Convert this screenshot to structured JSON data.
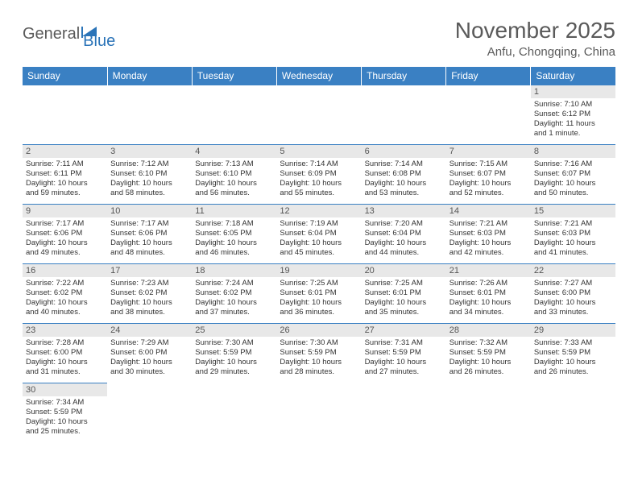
{
  "brand": {
    "part1": "General",
    "part2": "Blue"
  },
  "title": "November 2025",
  "location": "Anfu, Chongqing, China",
  "colors": {
    "header_bg": "#3a80c3",
    "header_text": "#ffffff",
    "daynum_bg": "#e8e8e8",
    "cell_border": "#3a80c3",
    "body_text": "#333333",
    "title_text": "#5a5a5a",
    "brand_accent": "#2b74b8"
  },
  "weekdays": [
    "Sunday",
    "Monday",
    "Tuesday",
    "Wednesday",
    "Thursday",
    "Friday",
    "Saturday"
  ],
  "weeks": [
    [
      null,
      null,
      null,
      null,
      null,
      null,
      {
        "d": "1",
        "sr": "Sunrise: 7:10 AM",
        "ss": "Sunset: 6:12 PM",
        "dl1": "Daylight: 11 hours",
        "dl2": "and 1 minute."
      }
    ],
    [
      {
        "d": "2",
        "sr": "Sunrise: 7:11 AM",
        "ss": "Sunset: 6:11 PM",
        "dl1": "Daylight: 10 hours",
        "dl2": "and 59 minutes."
      },
      {
        "d": "3",
        "sr": "Sunrise: 7:12 AM",
        "ss": "Sunset: 6:10 PM",
        "dl1": "Daylight: 10 hours",
        "dl2": "and 58 minutes."
      },
      {
        "d": "4",
        "sr": "Sunrise: 7:13 AM",
        "ss": "Sunset: 6:10 PM",
        "dl1": "Daylight: 10 hours",
        "dl2": "and 56 minutes."
      },
      {
        "d": "5",
        "sr": "Sunrise: 7:14 AM",
        "ss": "Sunset: 6:09 PM",
        "dl1": "Daylight: 10 hours",
        "dl2": "and 55 minutes."
      },
      {
        "d": "6",
        "sr": "Sunrise: 7:14 AM",
        "ss": "Sunset: 6:08 PM",
        "dl1": "Daylight: 10 hours",
        "dl2": "and 53 minutes."
      },
      {
        "d": "7",
        "sr": "Sunrise: 7:15 AM",
        "ss": "Sunset: 6:07 PM",
        "dl1": "Daylight: 10 hours",
        "dl2": "and 52 minutes."
      },
      {
        "d": "8",
        "sr": "Sunrise: 7:16 AM",
        "ss": "Sunset: 6:07 PM",
        "dl1": "Daylight: 10 hours",
        "dl2": "and 50 minutes."
      }
    ],
    [
      {
        "d": "9",
        "sr": "Sunrise: 7:17 AM",
        "ss": "Sunset: 6:06 PM",
        "dl1": "Daylight: 10 hours",
        "dl2": "and 49 minutes."
      },
      {
        "d": "10",
        "sr": "Sunrise: 7:17 AM",
        "ss": "Sunset: 6:06 PM",
        "dl1": "Daylight: 10 hours",
        "dl2": "and 48 minutes."
      },
      {
        "d": "11",
        "sr": "Sunrise: 7:18 AM",
        "ss": "Sunset: 6:05 PM",
        "dl1": "Daylight: 10 hours",
        "dl2": "and 46 minutes."
      },
      {
        "d": "12",
        "sr": "Sunrise: 7:19 AM",
        "ss": "Sunset: 6:04 PM",
        "dl1": "Daylight: 10 hours",
        "dl2": "and 45 minutes."
      },
      {
        "d": "13",
        "sr": "Sunrise: 7:20 AM",
        "ss": "Sunset: 6:04 PM",
        "dl1": "Daylight: 10 hours",
        "dl2": "and 44 minutes."
      },
      {
        "d": "14",
        "sr": "Sunrise: 7:21 AM",
        "ss": "Sunset: 6:03 PM",
        "dl1": "Daylight: 10 hours",
        "dl2": "and 42 minutes."
      },
      {
        "d": "15",
        "sr": "Sunrise: 7:21 AM",
        "ss": "Sunset: 6:03 PM",
        "dl1": "Daylight: 10 hours",
        "dl2": "and 41 minutes."
      }
    ],
    [
      {
        "d": "16",
        "sr": "Sunrise: 7:22 AM",
        "ss": "Sunset: 6:02 PM",
        "dl1": "Daylight: 10 hours",
        "dl2": "and 40 minutes."
      },
      {
        "d": "17",
        "sr": "Sunrise: 7:23 AM",
        "ss": "Sunset: 6:02 PM",
        "dl1": "Daylight: 10 hours",
        "dl2": "and 38 minutes."
      },
      {
        "d": "18",
        "sr": "Sunrise: 7:24 AM",
        "ss": "Sunset: 6:02 PM",
        "dl1": "Daylight: 10 hours",
        "dl2": "and 37 minutes."
      },
      {
        "d": "19",
        "sr": "Sunrise: 7:25 AM",
        "ss": "Sunset: 6:01 PM",
        "dl1": "Daylight: 10 hours",
        "dl2": "and 36 minutes."
      },
      {
        "d": "20",
        "sr": "Sunrise: 7:25 AM",
        "ss": "Sunset: 6:01 PM",
        "dl1": "Daylight: 10 hours",
        "dl2": "and 35 minutes."
      },
      {
        "d": "21",
        "sr": "Sunrise: 7:26 AM",
        "ss": "Sunset: 6:01 PM",
        "dl1": "Daylight: 10 hours",
        "dl2": "and 34 minutes."
      },
      {
        "d": "22",
        "sr": "Sunrise: 7:27 AM",
        "ss": "Sunset: 6:00 PM",
        "dl1": "Daylight: 10 hours",
        "dl2": "and 33 minutes."
      }
    ],
    [
      {
        "d": "23",
        "sr": "Sunrise: 7:28 AM",
        "ss": "Sunset: 6:00 PM",
        "dl1": "Daylight: 10 hours",
        "dl2": "and 31 minutes."
      },
      {
        "d": "24",
        "sr": "Sunrise: 7:29 AM",
        "ss": "Sunset: 6:00 PM",
        "dl1": "Daylight: 10 hours",
        "dl2": "and 30 minutes."
      },
      {
        "d": "25",
        "sr": "Sunrise: 7:30 AM",
        "ss": "Sunset: 5:59 PM",
        "dl1": "Daylight: 10 hours",
        "dl2": "and 29 minutes."
      },
      {
        "d": "26",
        "sr": "Sunrise: 7:30 AM",
        "ss": "Sunset: 5:59 PM",
        "dl1": "Daylight: 10 hours",
        "dl2": "and 28 minutes."
      },
      {
        "d": "27",
        "sr": "Sunrise: 7:31 AM",
        "ss": "Sunset: 5:59 PM",
        "dl1": "Daylight: 10 hours",
        "dl2": "and 27 minutes."
      },
      {
        "d": "28",
        "sr": "Sunrise: 7:32 AM",
        "ss": "Sunset: 5:59 PM",
        "dl1": "Daylight: 10 hours",
        "dl2": "and 26 minutes."
      },
      {
        "d": "29",
        "sr": "Sunrise: 7:33 AM",
        "ss": "Sunset: 5:59 PM",
        "dl1": "Daylight: 10 hours",
        "dl2": "and 26 minutes."
      }
    ],
    [
      {
        "d": "30",
        "sr": "Sunrise: 7:34 AM",
        "ss": "Sunset: 5:59 PM",
        "dl1": "Daylight: 10 hours",
        "dl2": "and 25 minutes."
      },
      null,
      null,
      null,
      null,
      null,
      null
    ]
  ]
}
